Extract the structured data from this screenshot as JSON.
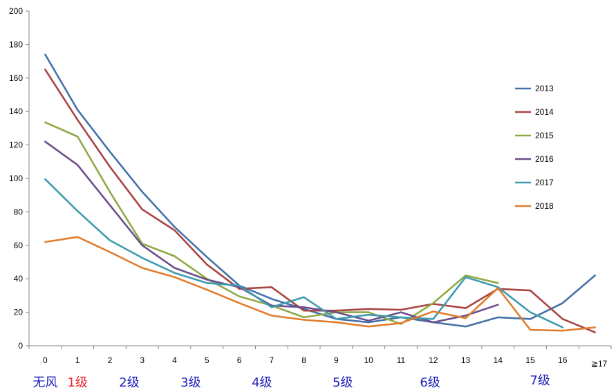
{
  "chart_data": {
    "type": "line",
    "title": "",
    "xlabel": "",
    "ylabel": "",
    "categories": [
      "0",
      "1",
      "2",
      "3",
      "4",
      "5",
      "6",
      "7",
      "8",
      "9",
      "10",
      "11",
      "12",
      "13",
      "14",
      "15",
      "16",
      "≧17"
    ],
    "ylim": [
      0,
      200
    ],
    "yticks": [
      0,
      20,
      40,
      60,
      80,
      100,
      120,
      140,
      160,
      180,
      200
    ],
    "grid": false,
    "legend_position": "right",
    "series": [
      {
        "name": "2013",
        "color": "#4472A8",
        "values": [
          174,
          141,
          116,
          92,
          71,
          53,
          36,
          28,
          22,
          16,
          14,
          17,
          14,
          11.5,
          17,
          16,
          25.5,
          42
        ]
      },
      {
        "name": "2014",
        "color": "#A94442",
        "values": [
          165,
          135,
          107,
          81.5,
          69,
          48.5,
          34,
          35,
          21,
          21,
          22,
          21.5,
          25,
          22.5,
          34,
          33,
          16,
          8
        ]
      },
      {
        "name": "2015",
        "color": "#8EAA45",
        "values": [
          133.5,
          125,
          92,
          61,
          53.5,
          40,
          29.5,
          24,
          17,
          20,
          20,
          13,
          25.5,
          42,
          37.5,
          null,
          null,
          null
        ]
      },
      {
        "name": "2016",
        "color": "#6C4E8C",
        "values": [
          122,
          108,
          84,
          60,
          46.5,
          39.5,
          35,
          24,
          23,
          20,
          15,
          20,
          14,
          18,
          24.5,
          null,
          null,
          null
        ]
      },
      {
        "name": "2017",
        "color": "#3F9BAE",
        "values": [
          99.5,
          80.5,
          63,
          52.5,
          43.5,
          37.5,
          36,
          23,
          29,
          16,
          18.5,
          17,
          16,
          41,
          35,
          20,
          11,
          null
        ]
      },
      {
        "name": "2018",
        "color": "#E07D2E",
        "values": [
          62,
          65,
          56,
          46.5,
          41,
          33.5,
          25.5,
          18,
          15.5,
          14,
          11.5,
          13.5,
          20.5,
          16.5,
          34.5,
          9.5,
          9,
          11
        ]
      }
    ],
    "annotations": [
      {
        "text": "无风",
        "category": "0",
        "color": "#1F1FB8"
      },
      {
        "text": "1级",
        "category": "1",
        "color": "#E8272B"
      },
      {
        "text": "2级",
        "category": "2.6",
        "color": "#1F1FB8"
      },
      {
        "text": "3级",
        "category": "4.5",
        "color": "#1F1FB8"
      },
      {
        "text": "4级",
        "category": "6.7",
        "color": "#1F1FB8"
      },
      {
        "text": "5级",
        "category": "9.2",
        "color": "#1F1FB8"
      },
      {
        "text": "6级",
        "category": "11.9",
        "color": "#1F1FB8"
      },
      {
        "text": "7级",
        "category": "15.3",
        "color": "#1F1FB8"
      }
    ]
  }
}
